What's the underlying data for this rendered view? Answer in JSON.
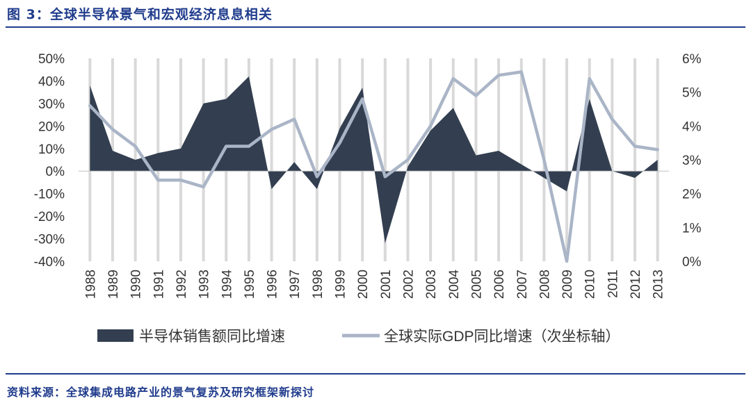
{
  "title": "图 3：全球半导体景气和宏观经济息息相关",
  "source": "资料来源：全球集成电路产业的景气复苏及研究框架新探讨",
  "chart_data": {
    "type": "area",
    "categories": [
      "1988",
      "1989",
      "1990",
      "1991",
      "1992",
      "1993",
      "1994",
      "1995",
      "1996",
      "1997",
      "1998",
      "1999",
      "2000",
      "2001",
      "2002",
      "2003",
      "2004",
      "2005",
      "2006",
      "2007",
      "2008",
      "2009",
      "2010",
      "2011",
      "2012",
      "2013"
    ],
    "series": [
      {
        "name": "半导体销售额同比增速",
        "axis": "left",
        "render": "area",
        "color": "#333f50",
        "values": [
          38,
          9,
          5,
          8,
          10,
          30,
          32,
          42,
          -8,
          4,
          -8,
          19,
          37,
          -32,
          2,
          18,
          28,
          7,
          9,
          3,
          -3,
          -9,
          32,
          0,
          -3,
          5
        ]
      },
      {
        "name": "全球实际GDP同比增速（次坐标轴）",
        "axis": "right",
        "render": "line",
        "color": "#aab5c7",
        "values": [
          4.6,
          3.9,
          3.4,
          2.4,
          2.4,
          2.2,
          3.4,
          3.4,
          3.9,
          4.2,
          2.5,
          3.5,
          4.8,
          2.5,
          3.0,
          4.0,
          5.4,
          4.9,
          5.5,
          5.6,
          3.0,
          0.0,
          5.4,
          4.2,
          3.4,
          3.3
        ]
      }
    ],
    "y_left": {
      "min": -40,
      "max": 50,
      "step": 10,
      "ticks": [
        "-40%",
        "-30%",
        "-20%",
        "-10%",
        "0%",
        "10%",
        "20%",
        "30%",
        "40%",
        "50%"
      ]
    },
    "y_right": {
      "min": 0,
      "max": 6,
      "step": 1,
      "ticks": [
        "0%",
        "1%",
        "2%",
        "3%",
        "4%",
        "5%",
        "6%"
      ]
    },
    "xlabel": "",
    "ylabel": "",
    "grid": "vertical",
    "legend_position": "bottom"
  },
  "colors": {
    "accent": "#1f3b8c",
    "grid": "#d9d9d9"
  }
}
